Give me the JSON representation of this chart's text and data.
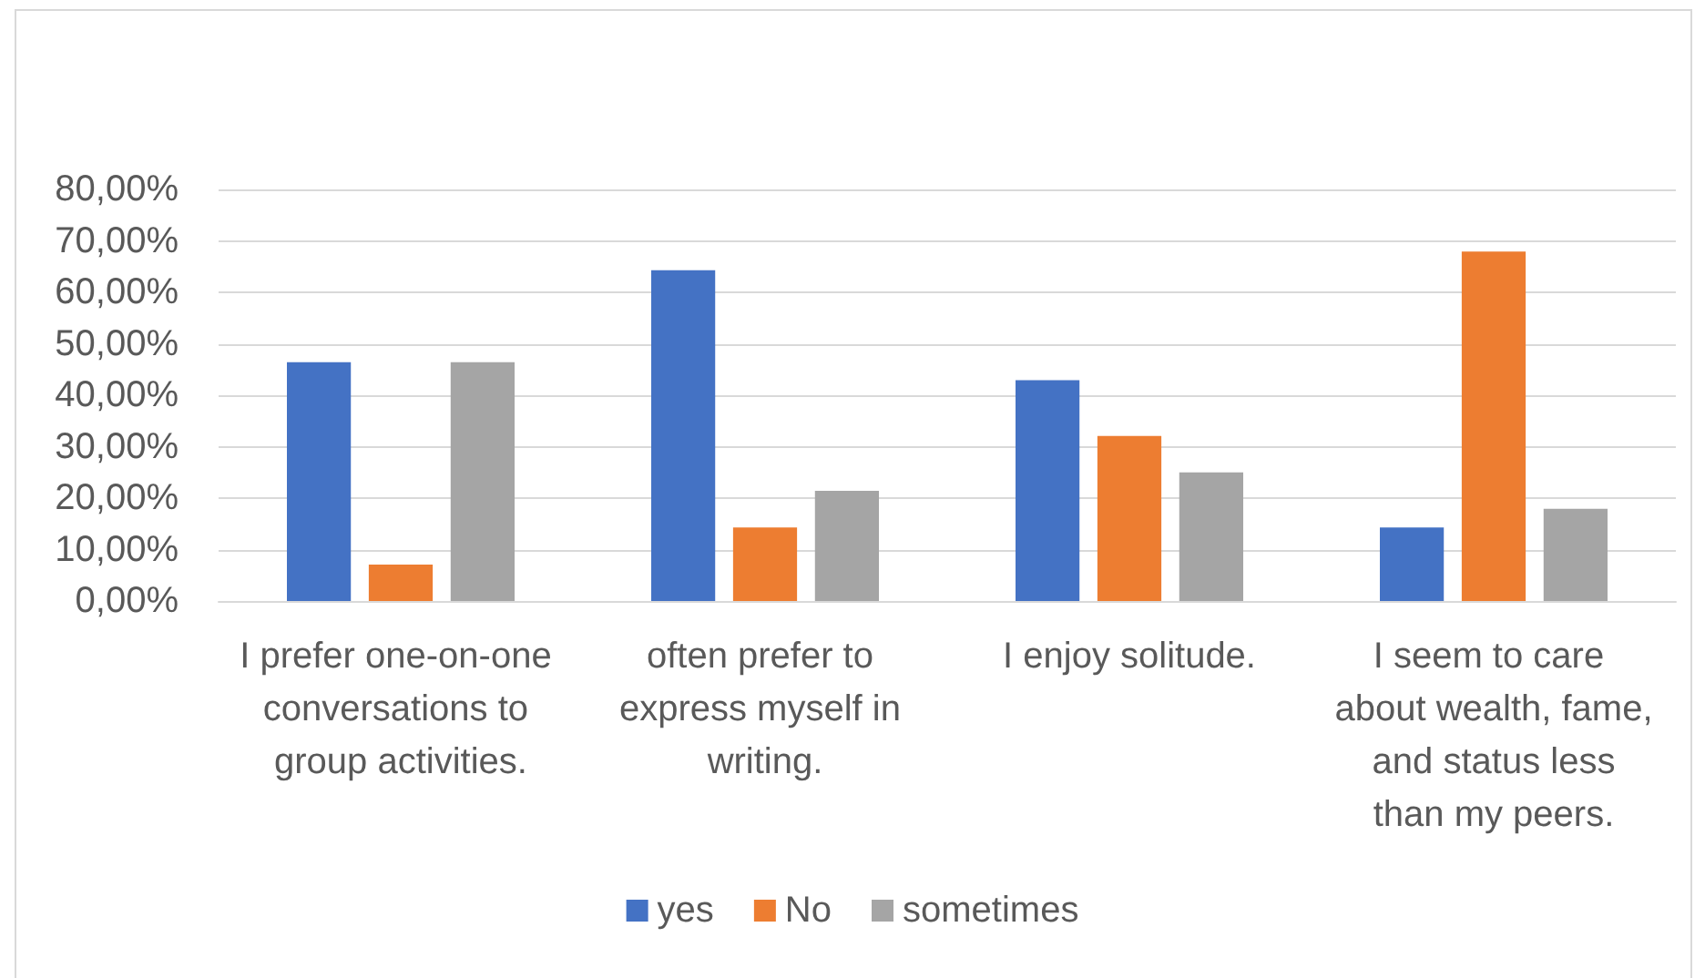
{
  "chart_data": {
    "type": "bar",
    "categories": [
      "I prefer one-on-one conversations to group activities.",
      "often prefer to express myself in writing.",
      "I enjoy solitude.",
      "I seem to care about wealth, fame, and status less than my peers."
    ],
    "series": [
      {
        "name": "yes",
        "color": "#4472c4",
        "values": [
          46.4,
          64.3,
          42.9,
          14.3
        ]
      },
      {
        "name": "No",
        "color": "#ed7d31",
        "values": [
          7.1,
          14.3,
          32.1,
          67.9
        ]
      },
      {
        "name": "sometimes",
        "color": "#a5a5a5",
        "values": [
          46.4,
          21.4,
          25.0,
          17.9
        ]
      }
    ],
    "ylim": [
      0,
      80
    ],
    "yticks": [
      {
        "value": 0,
        "label": "0,00%"
      },
      {
        "value": 10,
        "label": "10,00%"
      },
      {
        "value": 20,
        "label": "20,00%"
      },
      {
        "value": 30,
        "label": "30,00%"
      },
      {
        "value": 40,
        "label": "40,00%"
      },
      {
        "value": 50,
        "label": "50,00%"
      },
      {
        "value": 60,
        "label": "60,00%"
      },
      {
        "value": 70,
        "label": "70,00%"
      },
      {
        "value": 80,
        "label": "80,00%"
      }
    ],
    "grid": "y",
    "legend": "bottom"
  }
}
